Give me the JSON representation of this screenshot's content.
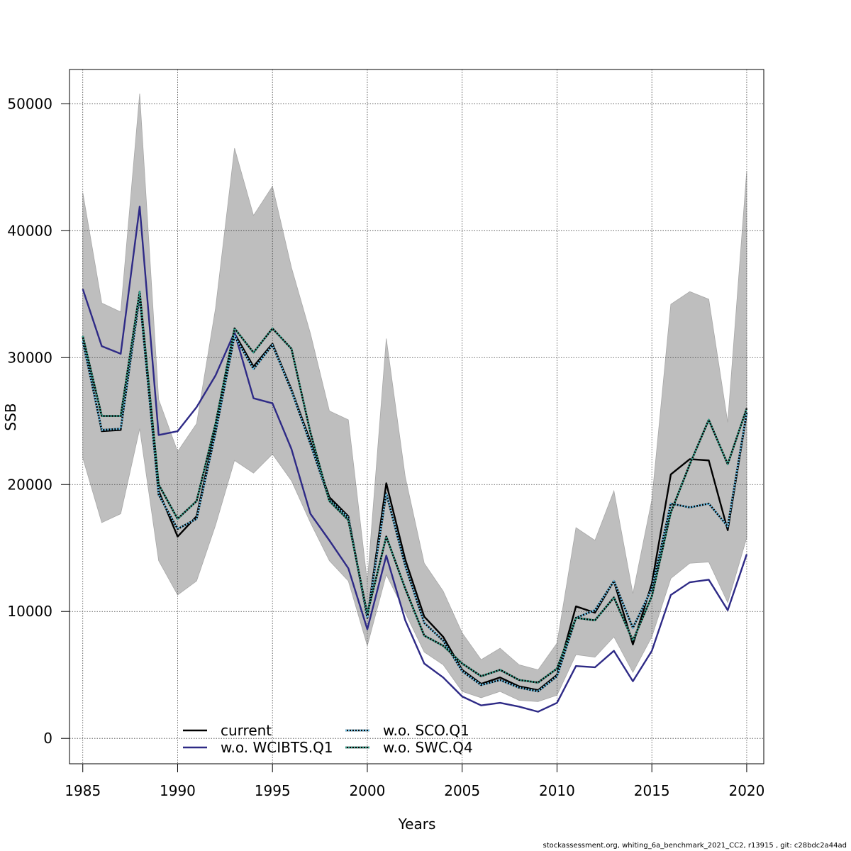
{
  "chart_data": {
    "type": "line",
    "title": "",
    "xlabel": "Years",
    "ylabel": "SSB",
    "xlim": [
      1984.3,
      2020.9
    ],
    "ylim": [
      -2000,
      52700
    ],
    "x_ticks": [
      1985,
      1990,
      1995,
      2000,
      2005,
      2010,
      2015,
      2020
    ],
    "y_ticks": [
      0,
      10000,
      20000,
      30000,
      40000,
      50000
    ],
    "grid": true,
    "legend_position": "bottom-left",
    "x": [
      1985,
      1986,
      1987,
      1988,
      1989,
      1990,
      1991,
      1992,
      1993,
      1994,
      1995,
      1996,
      1997,
      1998,
      1999,
      2000,
      2001,
      2002,
      2003,
      2004,
      2005,
      2006,
      2007,
      2008,
      2009,
      2010,
      2011,
      2012,
      2013,
      2014,
      2015,
      2016,
      2017,
      2018,
      2019,
      2020
    ],
    "band": {
      "color": "#bebebe",
      "lower": [
        22100,
        17000,
        17700,
        24400,
        14000,
        11300,
        12400,
        16800,
        21900,
        20900,
        22400,
        20300,
        17000,
        14000,
        12400,
        7300,
        12900,
        9900,
        6800,
        5800,
        3700,
        3200,
        3700,
        3000,
        2900,
        3400,
        6600,
        6400,
        8000,
        5200,
        8000,
        12600,
        13800,
        13900,
        10700,
        15800
      ],
      "upper": [
        43000,
        34300,
        33600,
        50800,
        26700,
        22600,
        24800,
        33900,
        46500,
        41200,
        43500,
        37100,
        31900,
        25800,
        25100,
        12300,
        31500,
        20600,
        13800,
        11600,
        8300,
        6200,
        7100,
        5800,
        5400,
        7500,
        16600,
        15600,
        19500,
        11400,
        18800,
        34200,
        35200,
        34600,
        24900,
        44700
      ]
    },
    "series": [
      {
        "name": "current",
        "color": "#000000",
        "dash": "solid",
        "values": [
          31600,
          24200,
          24300,
          35000,
          19500,
          15900,
          17500,
          24400,
          31900,
          29300,
          31100,
          27500,
          23400,
          19000,
          17500,
          9500,
          20100,
          14100,
          9600,
          8000,
          5400,
          4300,
          4800,
          4100,
          3800,
          5000,
          10400,
          9900,
          12400,
          7400,
          12200,
          20800,
          22000,
          21900,
          16400,
          25600
        ]
      },
      {
        "name": "w.o. WCIBTS.Q1",
        "color": "#2e2a86",
        "dash": "solid",
        "values": [
          35400,
          30900,
          30300,
          41900,
          23900,
          24200,
          26100,
          28600,
          32000,
          26800,
          26400,
          22800,
          17700,
          15600,
          13400,
          8600,
          14400,
          9300,
          5900,
          4800,
          3300,
          2600,
          2800,
          2500,
          2100,
          2800,
          5700,
          5600,
          6900,
          4500,
          6900,
          11300,
          12300,
          12500,
          10100,
          14500
        ]
      },
      {
        "name": "w.o. SCO.Q1",
        "color": "#6fc3ea",
        "dash": "dotted",
        "values": [
          31300,
          24300,
          24400,
          34800,
          19200,
          16500,
          17300,
          24100,
          31700,
          29100,
          31000,
          27400,
          23200,
          18800,
          17400,
          9500,
          19300,
          13600,
          9100,
          7700,
          5300,
          4200,
          4600,
          4000,
          3700,
          4900,
          9500,
          10100,
          12400,
          8700,
          11800,
          18500,
          18200,
          18500,
          16700,
          25700
        ]
      },
      {
        "name": "w.o. SWC.Q4",
        "color": "#3aa38f",
        "dash": "dotted",
        "values": [
          31700,
          25400,
          25400,
          35200,
          20000,
          17300,
          18700,
          24800,
          32300,
          30400,
          32300,
          30700,
          24100,
          18700,
          17200,
          9800,
          15900,
          11800,
          8100,
          7300,
          5900,
          4900,
          5400,
          4600,
          4400,
          5500,
          9500,
          9300,
          11100,
          7700,
          11200,
          17800,
          21600,
          25100,
          21600,
          26000
        ]
      }
    ]
  },
  "footer_text": "stockassessment.org, whiting_6a_benchmark_2021_CC2, r13915 , git: c28bdc2a44ad"
}
